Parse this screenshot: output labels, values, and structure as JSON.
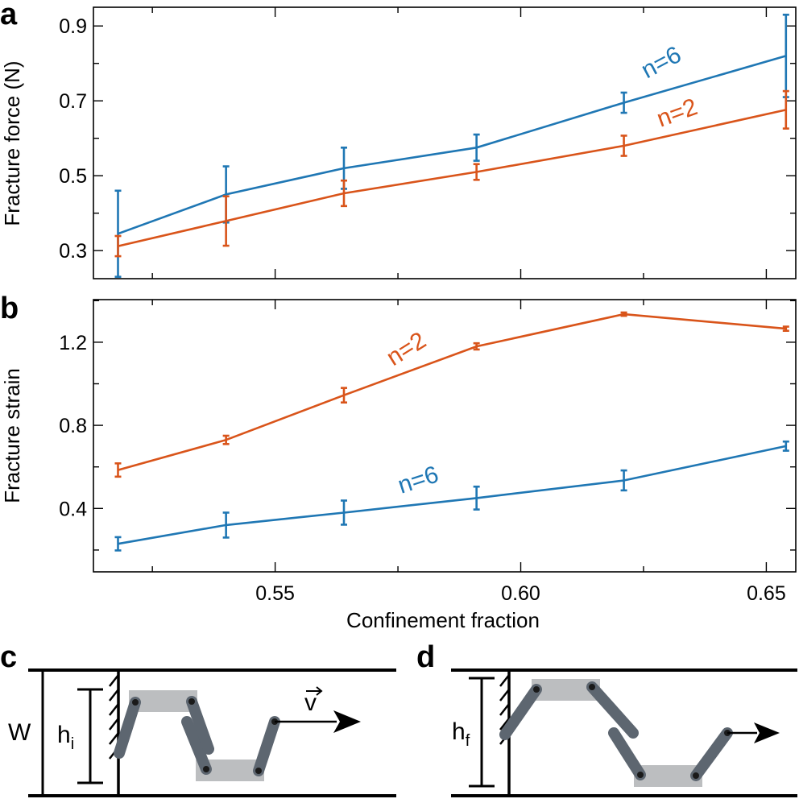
{
  "chart_data": [
    {
      "panel": "a",
      "type": "line",
      "ylabel": "Fracture force (N)",
      "xlabel": "",
      "xlim": [
        0.513,
        0.656
      ],
      "ylim": [
        0.225,
        0.95
      ],
      "yticks": [
        0.3,
        0.5,
        0.7,
        0.9
      ],
      "ytick_labels": [
        "0.3",
        "0.5",
        "0.7",
        "0.9"
      ],
      "xticks": [
        0.55,
        0.6,
        0.65
      ],
      "series": [
        {
          "name": "n=6",
          "label": "n=6",
          "color": "#1f77b4",
          "x": [
            0.518,
            0.54,
            0.564,
            0.591,
            0.621,
            0.654
          ],
          "y": [
            0.345,
            0.45,
            0.52,
            0.575,
            0.695,
            0.82
          ],
          "err": [
            0.115,
            0.075,
            0.055,
            0.035,
            0.027,
            0.11
          ]
        },
        {
          "name": "n=2",
          "label": "n=2",
          "color": "#d9541a",
          "x": [
            0.518,
            0.54,
            0.564,
            0.591,
            0.621,
            0.654
          ],
          "y": [
            0.312,
            0.379,
            0.453,
            0.51,
            0.58,
            0.676
          ],
          "err": [
            0.027,
            0.066,
            0.034,
            0.021,
            0.027,
            0.05
          ]
        }
      ]
    },
    {
      "panel": "b",
      "type": "line",
      "ylabel": "Fracture strain",
      "xlabel": "Confinement fraction",
      "xlim": [
        0.513,
        0.656
      ],
      "ylim": [
        0.095,
        1.405
      ],
      "yticks": [
        0.4,
        0.8,
        1.2
      ],
      "ytick_labels": [
        "0.4",
        "0.8",
        "1.2"
      ],
      "xticks": [
        0.55,
        0.6,
        0.65
      ],
      "xtick_labels": [
        "0.55",
        "0.60",
        "0.65"
      ],
      "series": [
        {
          "name": "n=2",
          "label": "n=2",
          "color": "#d9541a",
          "x": [
            0.518,
            0.54,
            0.564,
            0.591,
            0.621,
            0.654
          ],
          "y": [
            0.585,
            0.73,
            0.945,
            1.18,
            1.335,
            1.265
          ],
          "err": [
            0.032,
            0.02,
            0.035,
            0.015,
            0.008,
            0.01
          ]
        },
        {
          "name": "n=6",
          "label": "n=6",
          "color": "#1f77b4",
          "x": [
            0.518,
            0.54,
            0.564,
            0.591,
            0.621,
            0.654
          ],
          "y": [
            0.23,
            0.32,
            0.38,
            0.45,
            0.535,
            0.7
          ],
          "err": [
            0.032,
            0.06,
            0.058,
            0.055,
            0.048,
            0.022
          ]
        }
      ]
    }
  ],
  "panels": {
    "a": "a",
    "b": "b",
    "c": "c",
    "d": "d"
  },
  "diagram_c": {
    "width_label": "W",
    "height_label_base": "h",
    "height_label_sub": "i",
    "velocity_label": "v"
  },
  "diagram_d": {
    "height_label_base": "h",
    "height_label_sub": "f"
  },
  "colors": {
    "blue": "#1f77b4",
    "orange": "#d9541a",
    "chain": "#5d6670",
    "pad": "#bcbec0"
  }
}
